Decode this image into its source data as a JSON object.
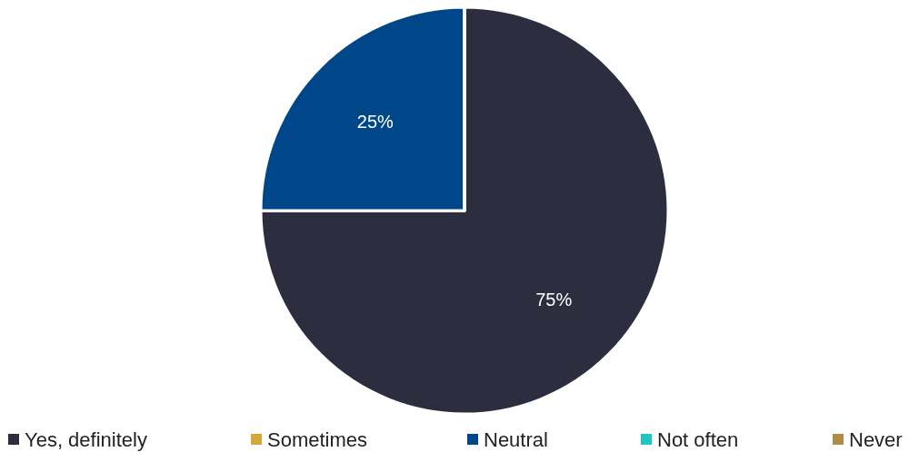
{
  "chart_data": {
    "type": "pie",
    "categories": [
      "Yes, definitely",
      "Sometimes",
      "Neutral",
      "Not often",
      "Never"
    ],
    "values": [
      75,
      0,
      25,
      0,
      0
    ],
    "colors": [
      "#2c2e3f",
      "#d4a63c",
      "#00478a",
      "#1dc6c4",
      "#b08d45"
    ],
    "value_labels": [
      "75%",
      null,
      "25%",
      null,
      null
    ],
    "legend": "bottom"
  }
}
